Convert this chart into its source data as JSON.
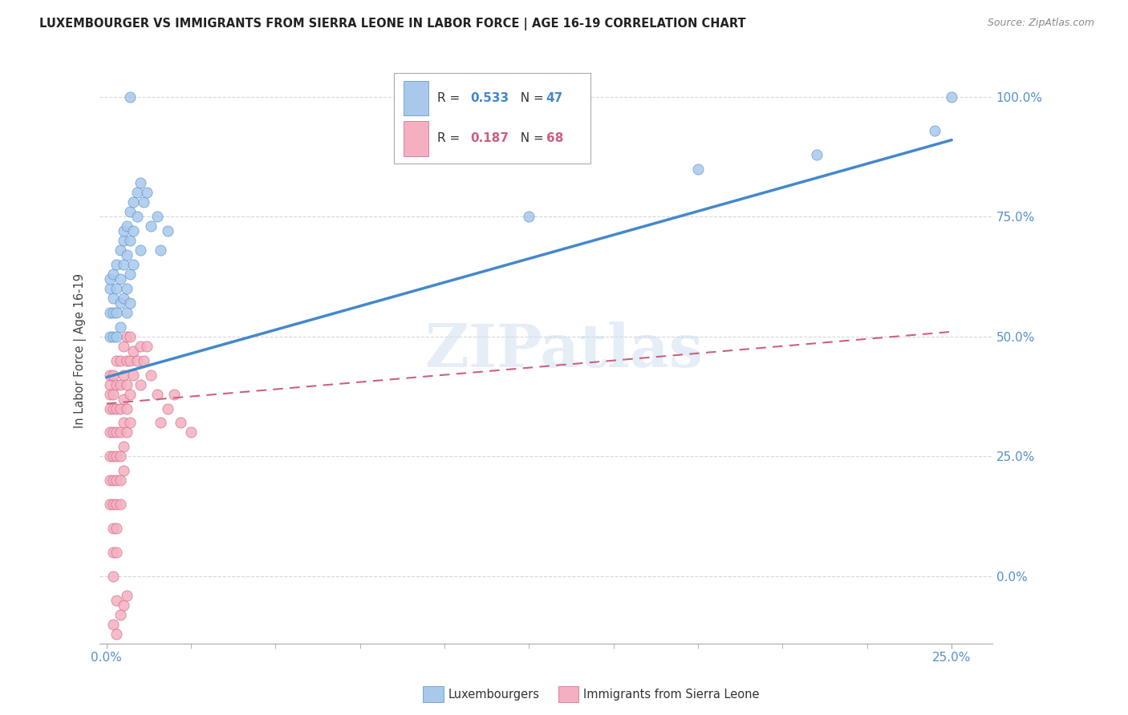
{
  "title": "LUXEMBOURGER VS IMMIGRANTS FROM SIERRA LEONE IN LABOR FORCE | AGE 16-19 CORRELATION CHART",
  "source": "Source: ZipAtlas.com",
  "ylabel": "In Labor Force | Age 16-19",
  "ytick_vals": [
    0.0,
    0.25,
    0.5,
    0.75,
    1.0
  ],
  "ytick_labels": [
    "0.0%",
    "25.0%",
    "50.0%",
    "75.0%",
    "100.0%"
  ],
  "xtick_left_label": "0.0%",
  "xtick_right_label": "25.0%",
  "xlim": [
    -0.002,
    0.262
  ],
  "ylim": [
    -0.14,
    1.08
  ],
  "watermark": "ZIPatlas",
  "blue_color": "#a8c8ec",
  "pink_color": "#f4b0c0",
  "blue_edge_color": "#5090c8",
  "pink_edge_color": "#d06080",
  "blue_line_color": "#4488cc",
  "pink_line_color": "#cc6080",
  "blue_trendline": [
    [
      0.0,
      0.415
    ],
    [
      0.25,
      0.91
    ]
  ],
  "pink_trendline": [
    [
      0.0,
      0.36
    ],
    [
      0.25,
      0.51
    ]
  ],
  "blue_scatter": [
    [
      0.001,
      0.6
    ],
    [
      0.001,
      0.55
    ],
    [
      0.001,
      0.5
    ],
    [
      0.001,
      0.62
    ],
    [
      0.002,
      0.58
    ],
    [
      0.002,
      0.63
    ],
    [
      0.002,
      0.55
    ],
    [
      0.002,
      0.5
    ],
    [
      0.003,
      0.65
    ],
    [
      0.003,
      0.6
    ],
    [
      0.003,
      0.55
    ],
    [
      0.003,
      0.5
    ],
    [
      0.004,
      0.68
    ],
    [
      0.004,
      0.62
    ],
    [
      0.004,
      0.57
    ],
    [
      0.004,
      0.52
    ],
    [
      0.005,
      0.7
    ],
    [
      0.005,
      0.65
    ],
    [
      0.005,
      0.58
    ],
    [
      0.005,
      0.72
    ],
    [
      0.006,
      0.73
    ],
    [
      0.006,
      0.67
    ],
    [
      0.006,
      0.6
    ],
    [
      0.006,
      0.55
    ],
    [
      0.007,
      0.76
    ],
    [
      0.007,
      0.7
    ],
    [
      0.007,
      0.63
    ],
    [
      0.007,
      0.57
    ],
    [
      0.008,
      0.78
    ],
    [
      0.008,
      0.72
    ],
    [
      0.008,
      0.65
    ],
    [
      0.009,
      0.8
    ],
    [
      0.009,
      0.75
    ],
    [
      0.01,
      0.82
    ],
    [
      0.01,
      0.68
    ],
    [
      0.011,
      0.78
    ],
    [
      0.012,
      0.8
    ],
    [
      0.013,
      0.73
    ],
    [
      0.015,
      0.75
    ],
    [
      0.016,
      0.68
    ],
    [
      0.018,
      0.72
    ],
    [
      0.007,
      1.0
    ],
    [
      0.175,
      0.85
    ],
    [
      0.21,
      0.88
    ],
    [
      0.245,
      0.93
    ],
    [
      0.25,
      1.0
    ],
    [
      0.125,
      0.75
    ]
  ],
  "pink_scatter": [
    [
      0.001,
      0.4
    ],
    [
      0.001,
      0.38
    ],
    [
      0.001,
      0.42
    ],
    [
      0.001,
      0.35
    ],
    [
      0.001,
      0.3
    ],
    [
      0.001,
      0.25
    ],
    [
      0.001,
      0.2
    ],
    [
      0.001,
      0.15
    ],
    [
      0.002,
      0.42
    ],
    [
      0.002,
      0.38
    ],
    [
      0.002,
      0.35
    ],
    [
      0.002,
      0.3
    ],
    [
      0.002,
      0.25
    ],
    [
      0.002,
      0.2
    ],
    [
      0.002,
      0.15
    ],
    [
      0.002,
      0.1
    ],
    [
      0.002,
      0.05
    ],
    [
      0.002,
      0.0
    ],
    [
      0.003,
      0.45
    ],
    [
      0.003,
      0.4
    ],
    [
      0.003,
      0.35
    ],
    [
      0.003,
      0.3
    ],
    [
      0.003,
      0.25
    ],
    [
      0.003,
      0.2
    ],
    [
      0.003,
      0.15
    ],
    [
      0.003,
      0.1
    ],
    [
      0.003,
      0.05
    ],
    [
      0.004,
      0.45
    ],
    [
      0.004,
      0.4
    ],
    [
      0.004,
      0.35
    ],
    [
      0.004,
      0.3
    ],
    [
      0.004,
      0.25
    ],
    [
      0.004,
      0.2
    ],
    [
      0.004,
      0.15
    ],
    [
      0.005,
      0.48
    ],
    [
      0.005,
      0.42
    ],
    [
      0.005,
      0.37
    ],
    [
      0.005,
      0.32
    ],
    [
      0.005,
      0.27
    ],
    [
      0.005,
      0.22
    ],
    [
      0.006,
      0.5
    ],
    [
      0.006,
      0.45
    ],
    [
      0.006,
      0.4
    ],
    [
      0.006,
      0.35
    ],
    [
      0.006,
      0.3
    ],
    [
      0.007,
      0.5
    ],
    [
      0.007,
      0.45
    ],
    [
      0.007,
      0.38
    ],
    [
      0.007,
      0.32
    ],
    [
      0.008,
      0.47
    ],
    [
      0.008,
      0.42
    ],
    [
      0.009,
      0.45
    ],
    [
      0.01,
      0.48
    ],
    [
      0.01,
      0.4
    ],
    [
      0.011,
      0.45
    ],
    [
      0.012,
      0.48
    ],
    [
      0.013,
      0.42
    ],
    [
      0.015,
      0.38
    ],
    [
      0.016,
      0.32
    ],
    [
      0.018,
      0.35
    ],
    [
      0.02,
      0.38
    ],
    [
      0.022,
      0.32
    ],
    [
      0.025,
      0.3
    ],
    [
      0.003,
      -0.05
    ],
    [
      0.004,
      -0.08
    ],
    [
      0.005,
      -0.06
    ],
    [
      0.002,
      -0.1
    ],
    [
      0.003,
      -0.12
    ],
    [
      0.006,
      -0.04
    ]
  ]
}
